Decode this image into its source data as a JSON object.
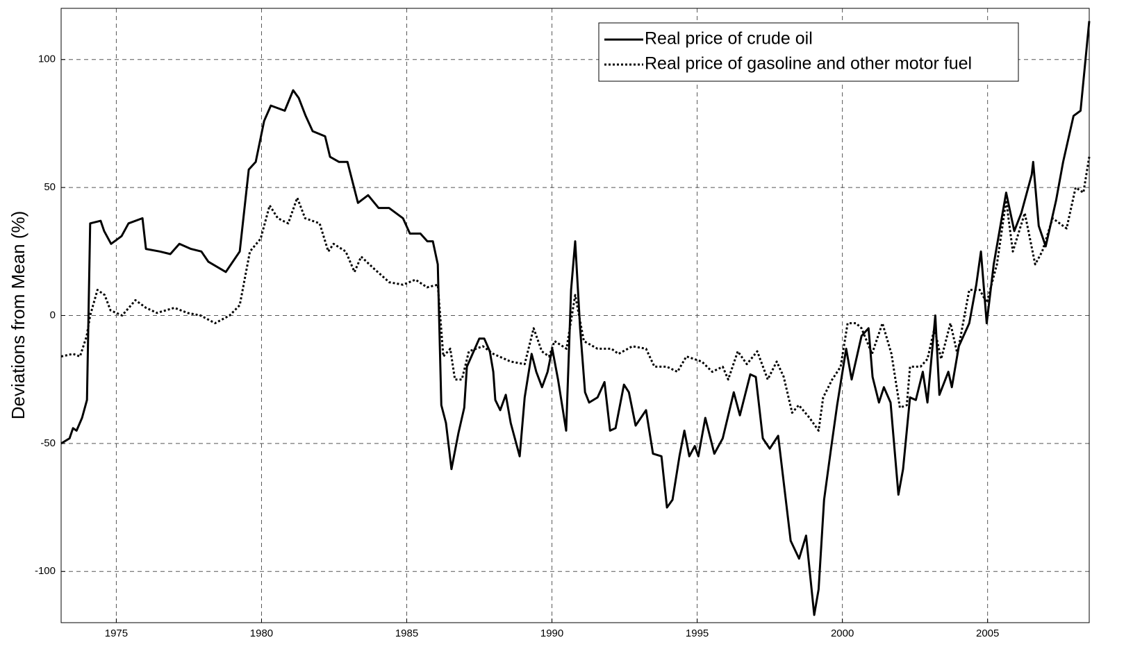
{
  "chart_data": {
    "type": "line",
    "ylabel": "Deviations from Mean (%)",
    "xlim": [
      1973.1,
      2008.5
    ],
    "ylim": [
      -120,
      120
    ],
    "xticks": [
      1975,
      1980,
      1985,
      1990,
      1995,
      2000,
      2005
    ],
    "yticks": [
      -100,
      -50,
      0,
      50,
      100
    ],
    "grid": true,
    "legend": "upper right",
    "series": [
      {
        "name": "Real price of crude oil",
        "color": "#000000",
        "linestyle": "solid",
        "x": [
          1973.1,
          1973.39,
          1973.51,
          1973.63,
          1973.82,
          1973.99,
          1974.1,
          1974.46,
          1974.58,
          1974.82,
          1975.18,
          1975.42,
          1975.9,
          1976.02,
          1976.5,
          1976.86,
          1977.17,
          1977.57,
          1977.93,
          1978.17,
          1978.77,
          1979.25,
          1979.56,
          1979.8,
          1980.09,
          1980.32,
          1980.8,
          1981.09,
          1981.28,
          1981.52,
          1981.76,
          1982.19,
          1982.36,
          1982.67,
          1982.96,
          1983.32,
          1983.67,
          1984.03,
          1984.39,
          1984.87,
          1985.11,
          1985.47,
          1985.71,
          1985.9,
          1986.07,
          1986.19,
          1986.35,
          1986.54,
          1986.78,
          1986.98,
          1987.07,
          1987.5,
          1987.67,
          1987.86,
          1987.98,
          1988.05,
          1988.22,
          1988.41,
          1988.58,
          1988.89,
          1989.06,
          1989.3,
          1989.46,
          1989.66,
          1989.85,
          1990.01,
          1990.21,
          1990.49,
          1990.66,
          1990.8,
          1990.97,
          1991.14,
          1991.28,
          1991.57,
          1991.81,
          1992.0,
          1992.19,
          1992.48,
          1992.65,
          1992.88,
          1993.24,
          1993.48,
          1993.77,
          1993.96,
          1994.15,
          1994.39,
          1994.56,
          1994.73,
          1994.92,
          1995.04,
          1995.28,
          1995.59,
          1995.88,
          1996.26,
          1996.47,
          1996.83,
          1997.02,
          1997.26,
          1997.5,
          1997.79,
          1998.03,
          1998.22,
          1998.51,
          1998.75,
          1999.03,
          1999.18,
          1999.37,
          1999.61,
          1999.82,
          2000.13,
          2000.32,
          2000.66,
          2000.9,
          2001.04,
          2001.26,
          2001.43,
          2001.66,
          2001.93,
          2002.09,
          2002.33,
          2002.53,
          2002.77,
          2002.93,
          2003.2,
          2003.34,
          2003.65,
          2003.77,
          2004.01,
          2004.37,
          2004.61,
          2004.77,
          2004.97,
          2005.21,
          2005.64,
          2005.92,
          2006.16,
          2006.52,
          2006.57,
          2006.76,
          2007.0,
          2007.36,
          2007.6,
          2007.96,
          2008.2,
          2008.5
        ],
        "values": [
          -50,
          -48,
          -44,
          -45,
          -40,
          -33,
          36,
          37,
          33,
          28,
          31,
          36,
          38,
          26,
          25,
          24,
          28,
          26,
          25,
          21,
          17,
          25,
          57,
          60,
          76,
          82,
          80,
          88,
          85,
          78,
          72,
          70,
          62,
          60,
          60,
          44,
          47,
          42,
          42,
          38,
          32,
          32,
          29,
          29,
          20,
          -35,
          -42,
          -60,
          -46,
          -36,
          -20,
          -9,
          -9,
          -14,
          -22,
          -33,
          -37,
          -31,
          -42,
          -55,
          -32,
          -15,
          -22,
          -28,
          -22,
          -13,
          -25,
          -45,
          10,
          29,
          -5,
          -30,
          -34,
          -32,
          -26,
          -45,
          -44,
          -27,
          -30,
          -43,
          -37,
          -54,
          -55,
          -75,
          -72,
          -55,
          -45,
          -55,
          -51,
          -55,
          -40,
          -54,
          -48,
          -30,
          -39,
          -23,
          -24,
          -48,
          -52,
          -47,
          -70,
          -88,
          -95,
          -86,
          -117,
          -107,
          -72,
          -52,
          -35,
          -13,
          -25,
          -8,
          -5,
          -24,
          -34,
          -28,
          -34,
          -70,
          -60,
          -32,
          -33,
          -22,
          -34,
          0,
          -31,
          -22,
          -28,
          -12,
          -3,
          12,
          25,
          -3,
          20,
          48,
          33,
          40,
          55,
          60,
          35,
          27,
          45,
          60,
          78,
          80,
          115
        ]
      },
      {
        "name": "Real price of gasoline and other motor fuel",
        "color": "#000000",
        "linestyle": "dotted",
        "x": [
          1973.1,
          1973.51,
          1973.75,
          1973.98,
          1974.1,
          1974.35,
          1974.6,
          1974.8,
          1975.2,
          1975.66,
          1976.02,
          1976.4,
          1977.0,
          1977.45,
          1977.9,
          1978.4,
          1978.9,
          1979.25,
          1979.6,
          1979.97,
          1980.28,
          1980.56,
          1980.92,
          1981.23,
          1981.5,
          1982.0,
          1982.3,
          1982.48,
          1982.9,
          1983.2,
          1983.43,
          1983.9,
          1984.4,
          1984.87,
          1985.3,
          1985.7,
          1986.07,
          1986.26,
          1986.5,
          1986.66,
          1986.9,
          1987.14,
          1987.62,
          1987.98,
          1988.58,
          1989.06,
          1989.37,
          1989.65,
          1989.9,
          1990.09,
          1990.5,
          1990.8,
          1991.1,
          1991.57,
          1992.05,
          1992.29,
          1992.77,
          1993.24,
          1993.53,
          1993.96,
          1994.32,
          1994.63,
          1995.16,
          1995.52,
          1995.88,
          1996.07,
          1996.4,
          1996.71,
          1997.07,
          1997.43,
          1997.74,
          1997.98,
          1998.27,
          1998.5,
          1998.87,
          1999.18,
          1999.34,
          1999.65,
          1999.94,
          2000.18,
          2000.47,
          2000.66,
          2001.02,
          2001.38,
          2001.69,
          2001.98,
          2002.22,
          2002.33,
          2002.69,
          2002.93,
          2003.17,
          2003.4,
          2003.72,
          2003.96,
          2004.37,
          2004.73,
          2004.97,
          2005.32,
          2005.64,
          2005.87,
          2006.28,
          2006.64,
          2006.88,
          2007.24,
          2007.72,
          2008.03,
          2008.3,
          2008.5
        ],
        "values": [
          -16,
          -15,
          -16,
          -8,
          0,
          10,
          8,
          2,
          0,
          6,
          3,
          1,
          3,
          1,
          0,
          -3,
          0,
          4,
          25,
          30,
          43,
          38,
          36,
          46,
          38,
          36,
          25,
          28,
          25,
          17,
          23,
          18,
          13,
          12,
          14,
          11,
          12,
          -16,
          -13,
          -25,
          -25,
          -14,
          -12,
          -15,
          -18,
          -19,
          -5,
          -14,
          -16,
          -10,
          -13,
          8,
          -10,
          -13,
          -13,
          -15,
          -12,
          -13,
          -20,
          -20,
          -22,
          -16,
          -18,
          -22,
          -20,
          -25,
          -14,
          -19,
          -14,
          -25,
          -18,
          -24,
          -38,
          -35,
          -40,
          -45,
          -32,
          -25,
          -20,
          -3,
          -3,
          -5,
          -15,
          -3,
          -15,
          -36,
          -35,
          -20,
          -20,
          -17,
          -5,
          -17,
          -3,
          -15,
          10,
          10,
          5,
          20,
          45,
          25,
          40,
          20,
          25,
          38,
          34,
          50,
          48,
          62
        ]
      }
    ]
  }
}
